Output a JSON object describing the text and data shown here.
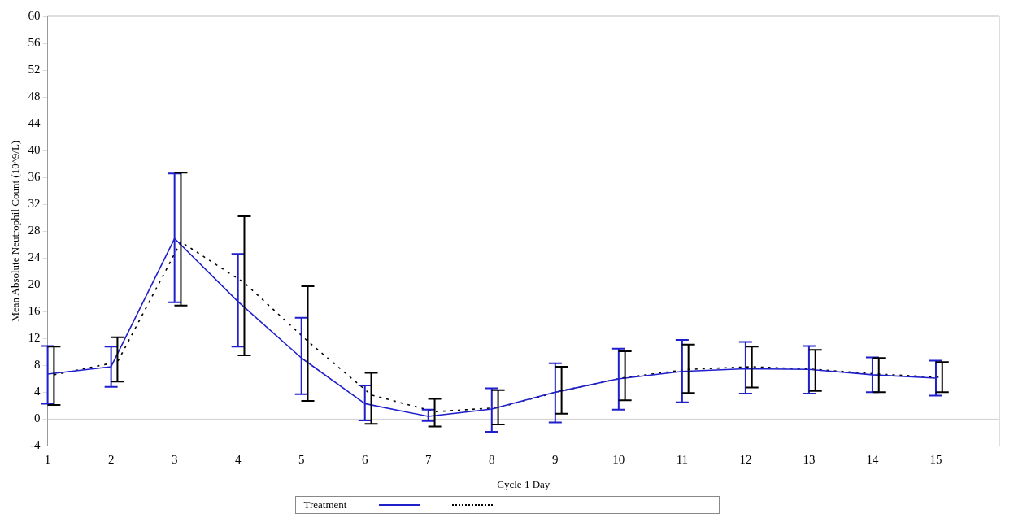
{
  "chart_data": {
    "type": "line",
    "xlabel": "Cycle 1 Day",
    "ylabel": "Mean Absolute Neutrophil Count (10^9/L)",
    "legend_title": "Treatment",
    "grid": false,
    "marker": "none",
    "xlim": [
      1,
      16
    ],
    "xticks": [
      1,
      2,
      3,
      4,
      5,
      6,
      7,
      8,
      9,
      10,
      11,
      12,
      13,
      14,
      15
    ],
    "ylim": [
      -4,
      60
    ],
    "yticks": [
      -4,
      0,
      4,
      8,
      12,
      16,
      20,
      24,
      28,
      32,
      36,
      40,
      44,
      48,
      52,
      56,
      60
    ],
    "ref_lines": [
      {
        "axis": "y",
        "value": 0,
        "color": "#d0d0d0"
      }
    ],
    "series": [
      {
        "color": "#1f1fcc",
        "line_style": "solid",
        "x": [
          1,
          2,
          3,
          4,
          5,
          6,
          7,
          8,
          9,
          10,
          11,
          12,
          13,
          14,
          15
        ],
        "values": [
          6.7,
          7.8,
          26.9,
          17.5,
          9.1,
          2.3,
          0.4,
          1.5,
          4.0,
          6.0,
          7.1,
          7.5,
          7.4,
          6.6,
          6.1
        ],
        "errors": [
          [
            2.3,
            10.9
          ],
          [
            4.8,
            10.8
          ],
          [
            17.4,
            36.6
          ],
          [
            10.8,
            24.6
          ],
          [
            3.7,
            15.1
          ],
          [
            -0.2,
            5.0
          ],
          [
            -0.3,
            1.4
          ],
          [
            -1.9,
            4.6
          ],
          [
            -0.5,
            8.3
          ],
          [
            1.4,
            10.5
          ],
          [
            2.5,
            11.8
          ],
          [
            3.8,
            11.5
          ],
          [
            3.8,
            10.9
          ],
          [
            4.0,
            9.2
          ],
          [
            3.5,
            8.7
          ]
        ]
      },
      {
        "color": "#000000",
        "line_style": "dotted",
        "x": [
          1.1,
          2.1,
          3.1,
          4.1,
          5.1,
          6.1,
          7.1,
          8.1,
          9.1,
          10.1,
          11.1,
          12.1,
          13.1,
          14.1,
          15.1
        ],
        "values": [
          6.6,
          8.5,
          26.4,
          20.3,
          11.6,
          3.6,
          1.1,
          1.7,
          4.2,
          6.2,
          7.4,
          7.8,
          7.4,
          6.7,
          6.2
        ],
        "errors": [
          [
            2.1,
            10.8
          ],
          [
            5.6,
            12.2
          ],
          [
            16.9,
            36.7
          ],
          [
            9.5,
            30.2
          ],
          [
            2.7,
            19.8
          ],
          [
            -0.7,
            6.9
          ],
          [
            -1.1,
            3.0
          ],
          [
            -0.8,
            4.3
          ],
          [
            0.8,
            7.8
          ],
          [
            2.8,
            10.1
          ],
          [
            3.9,
            11.1
          ],
          [
            4.7,
            10.8
          ],
          [
            4.2,
            10.3
          ],
          [
            4.0,
            9.1
          ],
          [
            4.0,
            8.5
          ]
        ]
      }
    ]
  }
}
